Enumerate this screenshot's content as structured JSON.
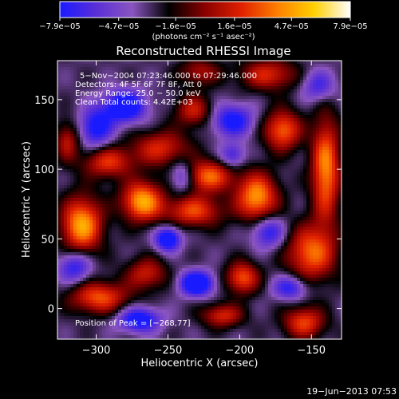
{
  "chart_data": {
    "type": "heatmap",
    "title": "Reconstructed RHESSI Image",
    "xlabel": "Heliocentric X (arcsec)",
    "ylabel": "Heliocentric Y (arcsec)",
    "xlim": [
      -327,
      -129
    ],
    "ylim": [
      -22,
      178
    ],
    "x_ticks": [
      {
        "value": -300,
        "label": "−300"
      },
      {
        "value": -250,
        "label": "−250"
      },
      {
        "value": -200,
        "label": "−200"
      },
      {
        "value": -150,
        "label": "−150"
      }
    ],
    "y_ticks": [
      {
        "value": 0,
        "label": "0"
      },
      {
        "value": 50,
        "label": "50"
      },
      {
        "value": 100,
        "label": "100"
      },
      {
        "value": 150,
        "label": "150"
      }
    ],
    "colorbar": {
      "min": -7.9e-05,
      "max": 7.9e-05,
      "colors": [
        "#1a1aff",
        "#5a2fd6",
        "#8a55bf",
        "#000000",
        "#8a0000",
        "#e02000",
        "#ff8000",
        "#ffd000",
        "#ffffff"
      ],
      "tick_values": [
        -7.9e-05,
        -4.7e-05,
        -1.6e-05,
        1.6e-05,
        4.7e-05,
        7.9e-05
      ],
      "tick_labels": [
        "−7.9e−05",
        "−4.7e−05",
        "−1.6e−05",
        "1.6e−05",
        "4.7e−05",
        "7.9e−05"
      ],
      "unit_label": "(photons cm⁻² s⁻¹ asec⁻²)"
    },
    "annotations": [
      "5−Nov−2004 07:23:46.000 to 07:29:46.000",
      "Detectors: 4F 5F 6F 7F 8F, Att 0",
      "Energy Range: 25.0 − 50.0 keV",
      "Clean     Total counts: 4.42E+03"
    ],
    "peak_label": "Position of Peak = [−268,77]",
    "peak": {
      "x": -268,
      "y": 77
    },
    "footer": "19−Jun−2013 07:53",
    "sources": [
      {
        "x": -310,
        "y": 60,
        "sx": 10,
        "sy": 14,
        "a": 1.0
      },
      {
        "x": -268,
        "y": 77,
        "sx": 10,
        "sy": 10,
        "a": 1.0
      },
      {
        "x": -292,
        "y": 105,
        "sx": 12,
        "sy": 8,
        "a": 0.65
      },
      {
        "x": -255,
        "y": 115,
        "sx": 14,
        "sy": 9,
        "a": 0.6
      },
      {
        "x": -232,
        "y": 142,
        "sx": 9,
        "sy": 8,
        "a": 0.55
      },
      {
        "x": -222,
        "y": 95,
        "sx": 12,
        "sy": 8,
        "a": 0.8
      },
      {
        "x": -232,
        "y": 70,
        "sx": 14,
        "sy": 8,
        "a": 0.7
      },
      {
        "x": -188,
        "y": 80,
        "sx": 10,
        "sy": 12,
        "a": 0.95
      },
      {
        "x": -170,
        "y": 128,
        "sx": 9,
        "sy": 10,
        "a": 0.8
      },
      {
        "x": -140,
        "y": 100,
        "sx": 7,
        "sy": 26,
        "a": 0.9
      },
      {
        "x": -150,
        "y": 40,
        "sx": 12,
        "sy": 14,
        "a": 0.8
      },
      {
        "x": -298,
        "y": 8,
        "sx": 14,
        "sy": 8,
        "a": 0.75
      },
      {
        "x": -265,
        "y": 25,
        "sx": 10,
        "sy": 8,
        "a": 0.55
      },
      {
        "x": -198,
        "y": 22,
        "sx": 8,
        "sy": 8,
        "a": 0.75
      },
      {
        "x": -212,
        "y": -5,
        "sx": 10,
        "sy": 6,
        "a": 0.6
      },
      {
        "x": -155,
        "y": -10,
        "sx": 10,
        "sy": 8,
        "a": 0.7
      },
      {
        "x": -180,
        "y": 168,
        "sx": 14,
        "sy": 8,
        "a": 0.6
      },
      {
        "x": -228,
        "y": 170,
        "sx": 10,
        "sy": 7,
        "a": 0.45
      },
      {
        "x": -320,
        "y": 120,
        "sx": 6,
        "sy": 10,
        "a": 0.5
      },
      {
        "x": -250,
        "y": 50,
        "sx": 6,
        "sy": 6,
        "a": -0.9
      },
      {
        "x": -230,
        "y": 18,
        "sx": 8,
        "sy": 6,
        "a": -1.0
      },
      {
        "x": -280,
        "y": 145,
        "sx": 10,
        "sy": 8,
        "a": -0.9
      },
      {
        "x": -300,
        "y": 130,
        "sx": 8,
        "sy": 10,
        "a": -0.7
      },
      {
        "x": -205,
        "y": 135,
        "sx": 10,
        "sy": 8,
        "a": -0.7
      },
      {
        "x": -180,
        "y": 55,
        "sx": 8,
        "sy": 8,
        "a": -0.6
      },
      {
        "x": -270,
        "y": -8,
        "sx": 10,
        "sy": 6,
        "a": -0.8
      },
      {
        "x": -165,
        "y": 15,
        "sx": 8,
        "sy": 6,
        "a": -0.6
      },
      {
        "x": -315,
        "y": 30,
        "sx": 8,
        "sy": 8,
        "a": -0.6
      },
      {
        "x": -240,
        "y": 95,
        "sx": 6,
        "sy": 8,
        "a": -0.5
      },
      {
        "x": -205,
        "y": 110,
        "sx": 6,
        "sy": 6,
        "a": -0.5
      },
      {
        "x": -145,
        "y": 160,
        "sx": 8,
        "sy": 8,
        "a": -0.5
      }
    ]
  }
}
